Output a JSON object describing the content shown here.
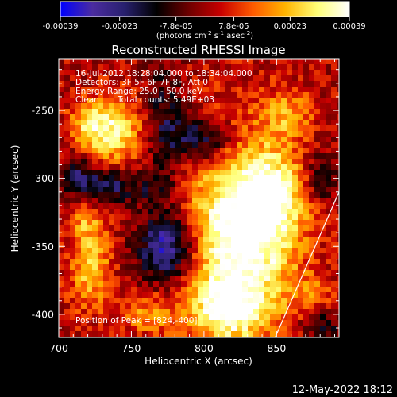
{
  "chart_data": {
    "type": "heatmap",
    "title": "Reconstructed RHESSI Image",
    "xlabel": "Heliocentric X (arcsec)",
    "ylabel": "Heliocentric Y (arcsec)",
    "xlim": [
      700,
      893
    ],
    "ylim": [
      -417,
      -212
    ],
    "x_ticks": [
      "700",
      "750",
      "800",
      "850"
    ],
    "x_tick_values": [
      700,
      750,
      800,
      850
    ],
    "y_ticks": [
      "-250",
      "-300",
      "-350",
      "-400"
    ],
    "y_tick_values": [
      -250,
      -300,
      -350,
      -400
    ],
    "colorbar": {
      "range": [
        -0.00039,
        0.00039
      ],
      "tick_labels": [
        "-0.00039",
        "-0.00023",
        "-7.8e-05",
        "7.8e-05",
        "0.00023",
        "0.00039"
      ],
      "tick_values": [
        -0.00039,
        -0.00023,
        -7.8e-05,
        7.8e-05,
        0.00023,
        0.00039
      ],
      "unit_prefix": "(photons cm",
      "unit_exp1": "-2",
      "unit_mid": " s",
      "unit_exp2": "-1",
      "unit_suffix": " asec",
      "unit_exp3": "-2",
      "unit_close": ")",
      "colors": [
        "#0000ff",
        "#4b2ca0",
        "#28206e",
        "#000000",
        "#6e0000",
        "#c80000",
        "#ff5a00",
        "#ffb400",
        "#ffff78",
        "#ffffff"
      ]
    },
    "annotations": {
      "time_range": "16-Jul-2012 18:28:04.000 to 18:34:04.000",
      "detectors": "Detectors: 3F 5F 6F 7F 8F, Att 0",
      "energy_range": "Energy Range: 25.0 - 50.0 keV",
      "clean_label": "Clean",
      "total_counts": "Total counts: 5.49E+03",
      "peak": "Position of Peak = [824,-400]"
    },
    "limb_line": [
      [
        849,
        -417
      ],
      [
        893,
        -310
      ]
    ],
    "intensity_sources": [
      {
        "x": 737,
        "y": -265,
        "sx": 15,
        "sy": 18,
        "a": 0.9
      },
      {
        "x": 720,
        "y": -258,
        "sx": 8,
        "sy": 10,
        "a": 0.5
      },
      {
        "x": 825,
        "y": -345,
        "sx": 26,
        "sy": 52,
        "a": 1.3
      },
      {
        "x": 848,
        "y": -312,
        "sx": 16,
        "sy": 22,
        "a": 0.7
      },
      {
        "x": 815,
        "y": -395,
        "sx": 14,
        "sy": 14,
        "a": 0.7
      },
      {
        "x": 722,
        "y": -365,
        "sx": 10,
        "sy": 22,
        "a": 0.7
      },
      {
        "x": 718,
        "y": -330,
        "sx": 8,
        "sy": 10,
        "a": 0.4
      },
      {
        "x": 762,
        "y": -400,
        "sx": 14,
        "sy": 10,
        "a": 0.5
      },
      {
        "x": 858,
        "y": -252,
        "sx": 12,
        "sy": 12,
        "a": 0.5
      },
      {
        "x": 875,
        "y": -385,
        "sx": 10,
        "sy": 10,
        "a": 0.35
      },
      {
        "x": 772,
        "y": -255,
        "sx": 10,
        "sy": 25,
        "a": -0.5
      },
      {
        "x": 800,
        "y": -272,
        "sx": 16,
        "sy": 12,
        "a": -0.8
      },
      {
        "x": 735,
        "y": -305,
        "sx": 14,
        "sy": 10,
        "a": -0.7
      },
      {
        "x": 775,
        "y": -350,
        "sx": 14,
        "sy": 18,
        "a": -1.1
      },
      {
        "x": 768,
        "y": -305,
        "sx": 10,
        "sy": 10,
        "a": -0.4
      },
      {
        "x": 712,
        "y": -298,
        "sx": 8,
        "sy": 10,
        "a": -0.6
      },
      {
        "x": 880,
        "y": -300,
        "sx": 10,
        "sy": 14,
        "a": -0.5
      },
      {
        "x": 880,
        "y": -408,
        "sx": 10,
        "sy": 8,
        "a": -0.5
      }
    ]
  },
  "footer": {
    "timestamp": "12-May-2022 18:12"
  }
}
